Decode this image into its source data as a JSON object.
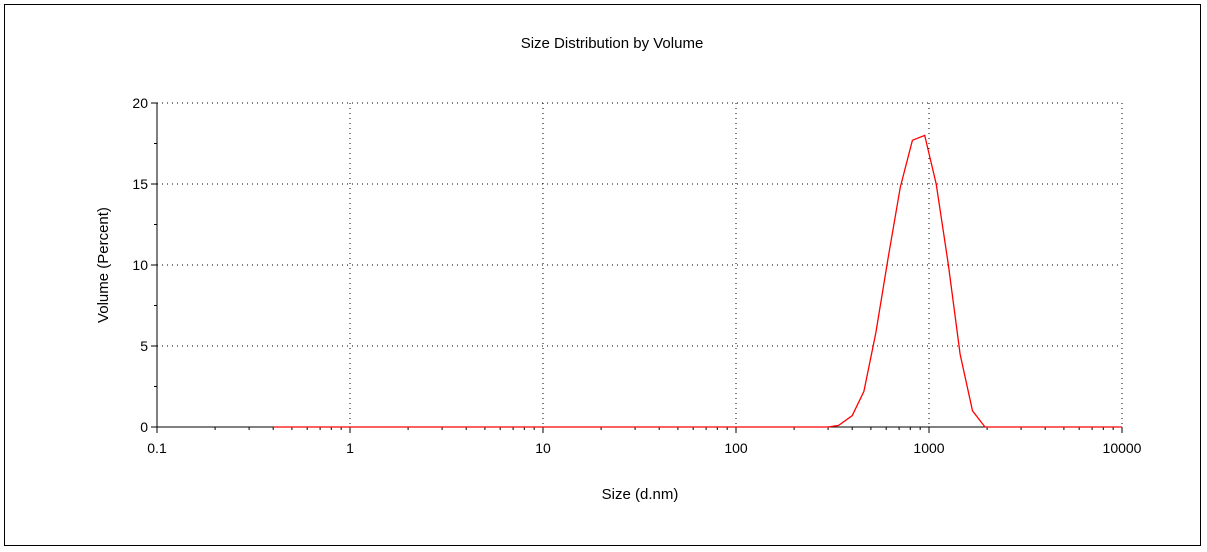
{
  "chart_data": {
    "type": "line",
    "title": "Size Distribution by Volume",
    "xlabel": "Size (d.nm)",
    "ylabel": "Volume (Percent)",
    "xscale": "log",
    "xlim": [
      0.1,
      10000
    ],
    "ylim": [
      0,
      20
    ],
    "x_ticks": [
      "0.1",
      "1",
      "10",
      "100",
      "1000",
      "10000"
    ],
    "y_ticks": [
      "0",
      "5",
      "10",
      "15",
      "20"
    ],
    "grid": true,
    "legend": "none",
    "series": [
      {
        "color": "#ff0000",
        "x": [
          0.4,
          300,
          340,
          400,
          460,
          530,
          615,
          710,
          820,
          950,
          1090,
          1260,
          1450,
          1680,
          1950,
          2300,
          10000
        ],
        "y": [
          0,
          0,
          0.1,
          0.7,
          2.2,
          5.8,
          10.5,
          14.8,
          17.7,
          18.0,
          15.0,
          10.0,
          4.5,
          1.0,
          0,
          0,
          0
        ]
      }
    ]
  }
}
